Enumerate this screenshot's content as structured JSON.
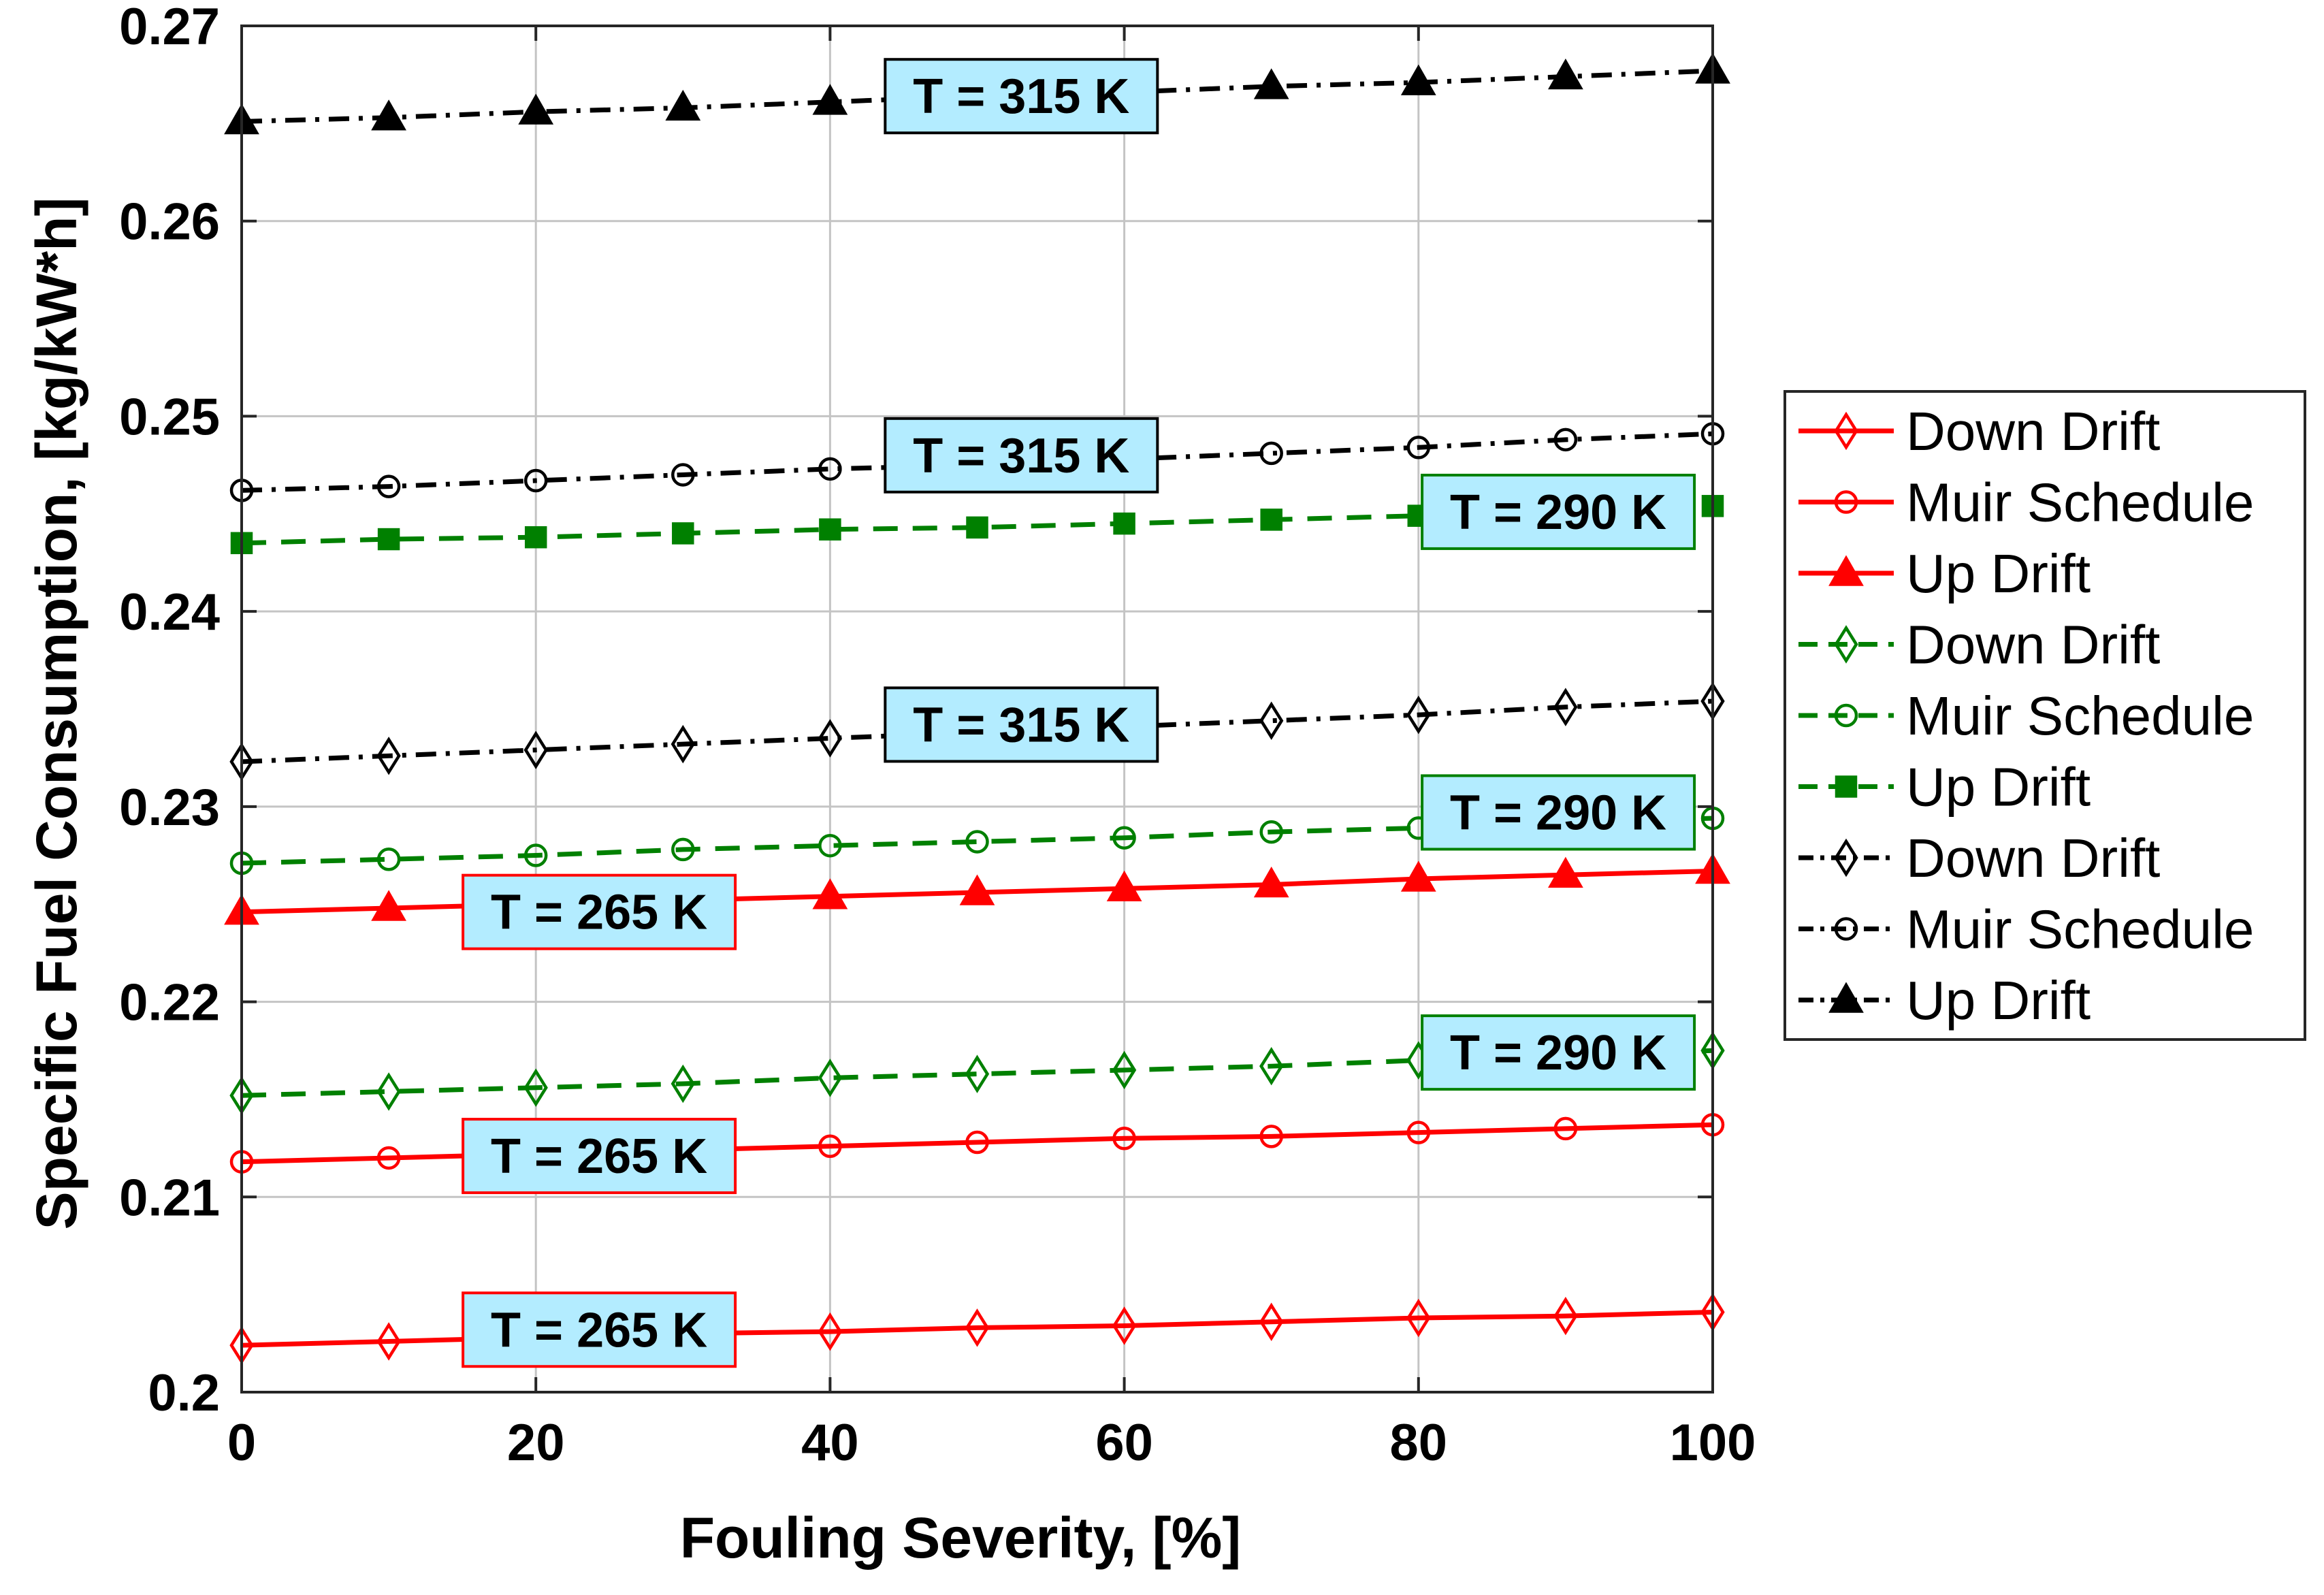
{
  "chart_data": {
    "type": "line",
    "title": "",
    "xlabel": "Fouling Severity, [%]",
    "ylabel": "Specific Fuel Consumption, [kg/kW*h]",
    "xlim": [
      0,
      100
    ],
    "ylim": [
      0.2,
      0.27
    ],
    "xticks": [
      0,
      20,
      40,
      60,
      80,
      100
    ],
    "yticks": [
      0.2,
      0.21,
      0.22,
      0.23,
      0.24,
      0.25,
      0.26,
      0.27
    ],
    "xtick_labels": [
      "0",
      "20",
      "40",
      "60",
      "80",
      "100"
    ],
    "ytick_labels": [
      "0.2",
      "0.21",
      "0.22",
      "0.23",
      "0.24",
      "0.25",
      "0.26",
      "0.27"
    ],
    "grid": true,
    "legend_position": "outside-right",
    "x": [
      0,
      10,
      20,
      30,
      40,
      50,
      60,
      70,
      80,
      90,
      100
    ],
    "series": [
      {
        "name": "Down Drift",
        "color": "#ff0000",
        "marker": "diamond",
        "filled": false,
        "dash": "solid",
        "values": [
          0.2024,
          0.2026,
          0.2028,
          0.203,
          0.2031,
          0.2033,
          0.2034,
          0.2036,
          0.2038,
          0.2039,
          0.2041
        ]
      },
      {
        "name": "Muir Schedule",
        "color": "#ff0000",
        "marker": "circle",
        "filled": false,
        "dash": "solid",
        "values": [
          0.2118,
          0.212,
          0.2122,
          0.2124,
          0.2126,
          0.2128,
          0.213,
          0.2131,
          0.2133,
          0.2135,
          0.2137
        ]
      },
      {
        "name": "Up Drift",
        "color": "#ff0000",
        "marker": "triangle",
        "filled": true,
        "dash": "solid",
        "values": [
          0.2246,
          0.2248,
          0.225,
          0.2252,
          0.2254,
          0.2256,
          0.2258,
          0.226,
          0.2263,
          0.2265,
          0.2267
        ]
      },
      {
        "name": "Down Drift",
        "color": "#008000",
        "marker": "diamond",
        "filled": false,
        "dash": "dashed",
        "values": [
          0.2152,
          0.2154,
          0.2156,
          0.2158,
          0.2161,
          0.2163,
          0.2165,
          0.2167,
          0.217,
          0.2172,
          0.2175
        ]
      },
      {
        "name": "Muir Schedule",
        "color": "#008000",
        "marker": "circle",
        "filled": false,
        "dash": "dashed",
        "values": [
          0.2271,
          0.2273,
          0.2275,
          0.2278,
          0.228,
          0.2282,
          0.2284,
          0.2287,
          0.2289,
          0.2292,
          0.2294
        ]
      },
      {
        "name": "Up Drift",
        "color": "#008000",
        "marker": "square",
        "filled": true,
        "dash": "dashed",
        "values": [
          0.2435,
          0.2437,
          0.2438,
          0.244,
          0.2442,
          0.2443,
          0.2445,
          0.2447,
          0.2449,
          0.2451,
          0.2454
        ]
      },
      {
        "name": "Down Drift",
        "color": "#000000",
        "marker": "diamond",
        "filled": false,
        "dash": "dashdot",
        "values": [
          0.2323,
          0.2326,
          0.2329,
          0.2332,
          0.2335,
          0.2338,
          0.2341,
          0.2344,
          0.2347,
          0.2351,
          0.2354
        ]
      },
      {
        "name": "Muir Schedule",
        "color": "#000000",
        "marker": "circle",
        "filled": false,
        "dash": "dashdot",
        "values": [
          0.2462,
          0.2464,
          0.2467,
          0.247,
          0.2473,
          0.2475,
          0.2478,
          0.2481,
          0.2484,
          0.2488,
          0.2491
        ]
      },
      {
        "name": "Up Drift",
        "color": "#000000",
        "marker": "triangle",
        "filled": true,
        "dash": "dashdot",
        "values": [
          0.2651,
          0.2653,
          0.2656,
          0.2658,
          0.2661,
          0.2664,
          0.2666,
          0.2669,
          0.2671,
          0.2674,
          0.2677
        ]
      }
    ],
    "annotations": [
      {
        "text": "T = 315 K",
        "x": 53,
        "y": 0.2664,
        "border": "#000000"
      },
      {
        "text": "T = 315 K",
        "x": 53,
        "y": 0.248,
        "border": "#000000"
      },
      {
        "text": "T = 315 K",
        "x": 53,
        "y": 0.2342,
        "border": "#000000"
      },
      {
        "text": "T = 290 K",
        "x": 89.5,
        "y": 0.2451,
        "border": "#008000"
      },
      {
        "text": "T = 290 K",
        "x": 89.5,
        "y": 0.2297,
        "border": "#008000"
      },
      {
        "text": "T = 290 K",
        "x": 89.5,
        "y": 0.2174,
        "border": "#008000"
      },
      {
        "text": "T = 265 K",
        "x": 24.3,
        "y": 0.2246,
        "border": "#ff0000"
      },
      {
        "text": "T = 265 K",
        "x": 24.3,
        "y": 0.2121,
        "border": "#ff0000"
      },
      {
        "text": "T = 265 K",
        "x": 24.3,
        "y": 0.2032,
        "border": "#ff0000"
      }
    ],
    "annotation_fill": "#b3ecff"
  }
}
